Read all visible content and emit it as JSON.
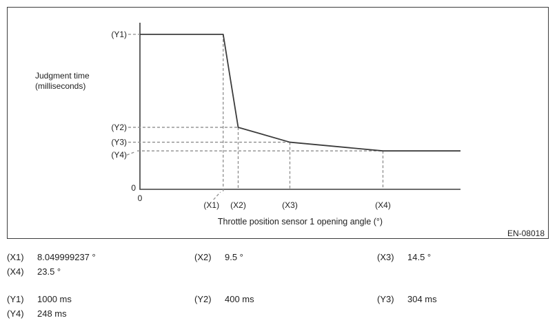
{
  "figure": {
    "ylabel_line1": "Judgment time",
    "ylabel_line2": "(milliseconds)",
    "xlabel": "Throttle position sensor 1 opening angle (°)",
    "code": "EN-08018",
    "origin_zero_y": "0",
    "origin_zero_x": "0"
  },
  "chart_data": {
    "type": "line",
    "title": "",
    "xlabel": "Throttle position sensor 1 opening angle (°)",
    "ylabel": "Judgment time (milliseconds)",
    "xlim": [
      0,
      31
    ],
    "ylim": [
      0,
      1075
    ],
    "grid": false,
    "legend": "none",
    "line_color": "#3b3b3b",
    "guide_color": "#8c8c8c",
    "series": [
      {
        "name": "judgment-time-curve",
        "x": [
          0,
          8.049999237,
          9.5,
          14.5,
          23.5,
          31
        ],
        "y": [
          1000,
          1000,
          400,
          304,
          248,
          248
        ]
      }
    ],
    "x_ticks": [
      {
        "label": "(X1)",
        "value": 8.049999237,
        "label_dx": -17,
        "leader": true
      },
      {
        "label": "(X2)",
        "value": 9.5
      },
      {
        "label": "(X3)",
        "value": 14.5
      },
      {
        "label": "(X4)",
        "value": 23.5
      }
    ],
    "y_ticks": [
      {
        "label": "(Y1)",
        "value": 1000
      },
      {
        "label": "(Y2)",
        "value": 400
      },
      {
        "label": "(Y3)",
        "value": 304
      },
      {
        "label": "(Y4)",
        "value": 248,
        "label_dy": 6,
        "leader": true
      }
    ]
  },
  "definitions": {
    "x_entries": [
      {
        "label": "(X1)",
        "value": "8.049999237 °"
      },
      {
        "label": "(X2)",
        "value": "9.5 °"
      },
      {
        "label": "(X3)",
        "value": "14.5 °"
      },
      {
        "label": "(X4)",
        "value": "23.5 °"
      }
    ],
    "y_entries": [
      {
        "label": "(Y1)",
        "value": "1000 ms"
      },
      {
        "label": "(Y2)",
        "value": "400 ms"
      },
      {
        "label": "(Y3)",
        "value": "304 ms"
      },
      {
        "label": "(Y4)",
        "value": "248 ms"
      }
    ]
  }
}
